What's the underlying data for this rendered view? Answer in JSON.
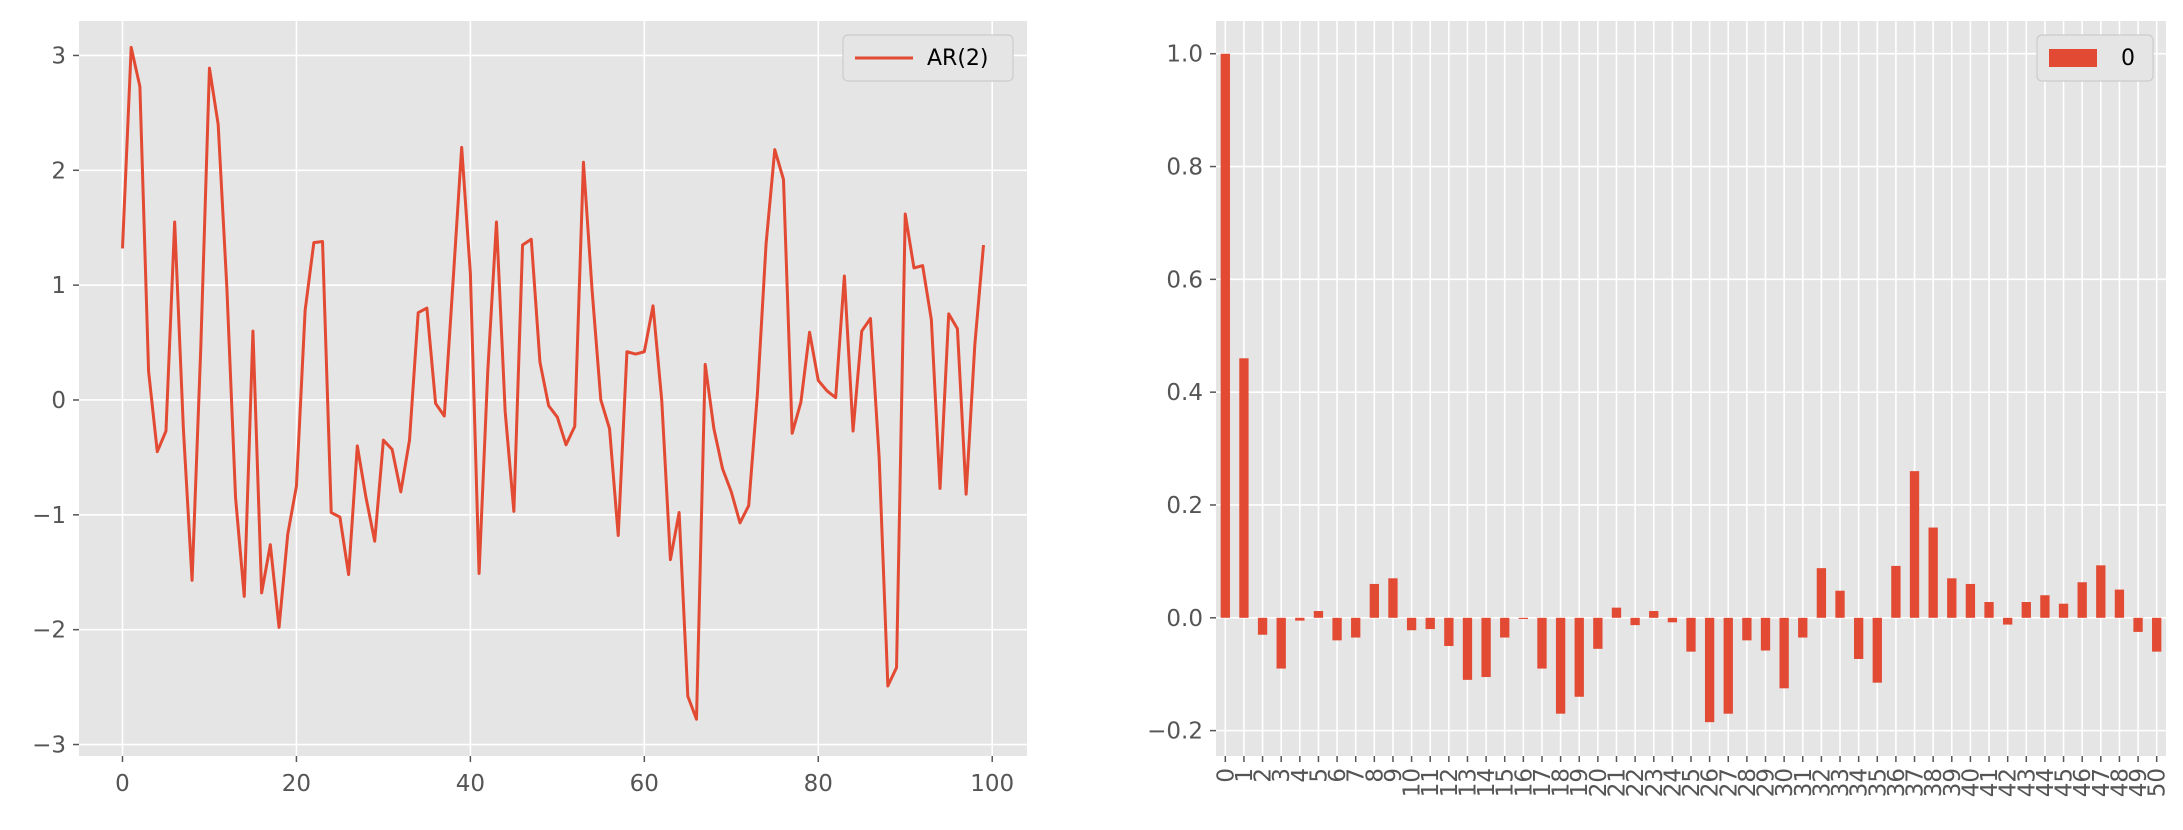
{
  "chart_data": [
    {
      "type": "line",
      "title": "",
      "xlabel": "",
      "ylabel": "",
      "xlim": [
        -5,
        104
      ],
      "ylim": [
        -3.1,
        3.3
      ],
      "xticks": [
        0,
        20,
        40,
        60,
        80,
        100
      ],
      "xtick_labels": [
        "0",
        "20",
        "40",
        "60",
        "80",
        "100"
      ],
      "yticks": [
        -3,
        -2,
        -1,
        0,
        1,
        2,
        3
      ],
      "ytick_labels": [
        "−3",
        "−2",
        "−1",
        "0",
        "1",
        "2",
        "3"
      ],
      "grid": true,
      "legend": {
        "position": "top-right",
        "entries": [
          "AR(2)"
        ]
      },
      "series": [
        {
          "name": "AR(2)",
          "color": "#E24A33",
          "x": [
            0,
            1,
            2,
            3,
            4,
            5,
            6,
            7,
            8,
            9,
            10,
            11,
            12,
            13,
            14,
            15,
            16,
            17,
            18,
            19,
            20,
            21,
            22,
            23,
            24,
            25,
            26,
            27,
            28,
            29,
            30,
            31,
            32,
            33,
            34,
            35,
            36,
            37,
            38,
            39,
            40,
            41,
            42,
            43,
            44,
            45,
            46,
            47,
            48,
            49,
            50,
            51,
            52,
            53,
            54,
            55,
            56,
            57,
            58,
            59,
            60,
            61,
            62,
            63,
            64,
            65,
            66,
            67,
            68,
            69,
            70,
            71,
            72,
            73,
            74,
            75,
            76,
            77,
            78,
            79,
            80,
            81,
            82,
            83,
            84,
            85,
            86,
            87,
            88,
            89,
            90,
            91,
            92,
            93,
            94,
            95,
            96,
            97,
            98,
            99
          ],
          "values": [
            1.32,
            3.07,
            2.73,
            0.25,
            -0.45,
            -0.27,
            1.55,
            -0.25,
            -1.57,
            0.45,
            2.89,
            2.4,
            0.98,
            -0.85,
            -1.71,
            0.6,
            -1.68,
            -1.26,
            -1.98,
            -1.17,
            -0.75,
            0.78,
            1.37,
            1.38,
            -0.98,
            -1.02,
            -1.52,
            -0.4,
            -0.85,
            -1.23,
            -0.35,
            -0.43,
            -0.8,
            -0.35,
            0.76,
            0.8,
            -0.03,
            -0.14,
            1.02,
            2.2,
            1.1,
            -1.51,
            0.25,
            1.55,
            -0.1,
            -0.97,
            1.35,
            1.4,
            0.33,
            -0.05,
            -0.15,
            -0.39,
            -0.23,
            2.07,
            0.95,
            0.0,
            -0.25,
            -1.18,
            0.42,
            0.4,
            0.42,
            0.82,
            0.0,
            -1.39,
            -0.98,
            -2.58,
            -2.78,
            0.31,
            -0.25,
            -0.6,
            -0.8,
            -1.07,
            -0.92,
            0.05,
            1.36,
            2.18,
            1.92,
            -0.29,
            -0.02,
            0.59,
            0.17,
            0.08,
            0.02,
            1.08,
            -0.27,
            0.6,
            0.71,
            -0.5,
            -2.49,
            -2.33,
            1.62,
            1.15,
            1.17,
            0.7,
            -0.77,
            0.75,
            0.62,
            -0.82,
            0.48,
            1.35
          ]
        }
      ]
    },
    {
      "type": "bar",
      "title": "",
      "xlabel": "",
      "ylabel": "",
      "ylim": [
        -0.245,
        1.058
      ],
      "yticks": [
        -0.2,
        0.0,
        0.2,
        0.4,
        0.6,
        0.8,
        1.0
      ],
      "ytick_labels": [
        "−0.2",
        "0.0",
        "0.2",
        "0.4",
        "0.6",
        "0.8",
        "1.0"
      ],
      "grid": true,
      "legend": {
        "position": "top-right",
        "entries": [
          "0"
        ]
      },
      "categories": [
        "0",
        "1",
        "2",
        "3",
        "4",
        "5",
        "6",
        "7",
        "8",
        "9",
        "10",
        "11",
        "12",
        "13",
        "14",
        "15",
        "16",
        "17",
        "18",
        "19",
        "20",
        "21",
        "22",
        "23",
        "24",
        "25",
        "26",
        "27",
        "28",
        "29",
        "30",
        "31",
        "32",
        "33",
        "34",
        "35",
        "36",
        "37",
        "38",
        "39",
        "40",
        "41",
        "42",
        "43",
        "44",
        "45",
        "46",
        "47",
        "48",
        "49",
        "50"
      ],
      "series": [
        {
          "name": "0",
          "color": "#E24A33",
          "values": [
            1.0,
            0.46,
            -0.03,
            -0.09,
            -0.005,
            0.012,
            -0.04,
            -0.035,
            0.06,
            0.07,
            -0.022,
            -0.02,
            -0.05,
            -0.11,
            -0.105,
            -0.035,
            -0.002,
            -0.09,
            -0.17,
            -0.14,
            -0.055,
            0.018,
            -0.013,
            0.012,
            -0.008,
            -0.06,
            -0.185,
            -0.17,
            -0.04,
            -0.058,
            -0.125,
            -0.035,
            0.088,
            0.048,
            -0.073,
            -0.115,
            0.092,
            0.26,
            0.16,
            0.07,
            0.06,
            0.028,
            -0.012,
            0.028,
            0.04,
            0.025,
            0.063,
            0.093,
            0.05,
            -0.025,
            -0.06
          ]
        }
      ]
    }
  ]
}
